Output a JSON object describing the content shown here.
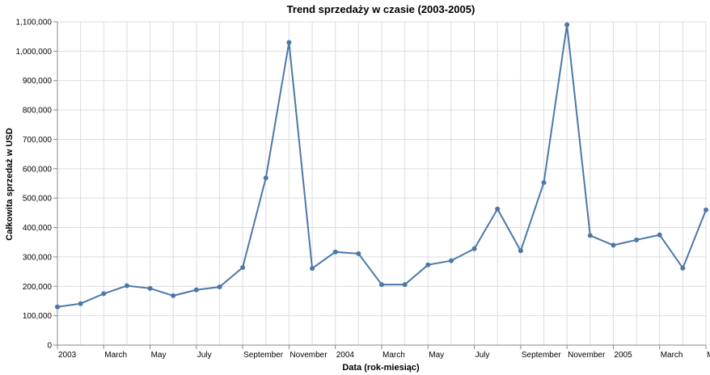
{
  "chart_data": {
    "type": "line",
    "title": "Trend sprzedaży w czasie (2003-2005)",
    "xlabel": "Data (rok-miesiąc)",
    "ylabel": "Całkowita sprzedaż w USD",
    "ylim": [
      0,
      1100000
    ],
    "y_ticks": [
      "0",
      "100,000",
      "200,000",
      "300,000",
      "400,000",
      "500,000",
      "600,000",
      "700,000",
      "800,000",
      "900,000",
      "1,000,000",
      "1,100,000"
    ],
    "x_tick_labels": [
      "2003",
      "March",
      "May",
      "July",
      "September",
      "November",
      "2004",
      "March",
      "May",
      "July",
      "September",
      "November",
      "2005",
      "March",
      "May"
    ],
    "color": "#4c78a8",
    "grid": true,
    "x": [
      "2003-01",
      "2003-02",
      "2003-03",
      "2003-04",
      "2003-05",
      "2003-06",
      "2003-07",
      "2003-08",
      "2003-09",
      "2003-10",
      "2003-11",
      "2003-12",
      "2004-01",
      "2004-02",
      "2004-03",
      "2004-04",
      "2004-05",
      "2004-06",
      "2004-07",
      "2004-08",
      "2004-09",
      "2004-10",
      "2004-11",
      "2004-12",
      "2005-01",
      "2005-02",
      "2005-03",
      "2005-04",
      "2005-05"
    ],
    "series": [
      {
        "values": [
          130000,
          141000,
          175000,
          202000,
          193000,
          168000,
          188000,
          198000,
          264000,
          569000,
          1030000,
          261000,
          317000,
          311000,
          206000,
          206000,
          273000,
          287000,
          328000,
          463000,
          321000,
          553000,
          1090000,
          373000,
          340000,
          358000,
          375000,
          262000,
          460000
        ]
      }
    ]
  }
}
